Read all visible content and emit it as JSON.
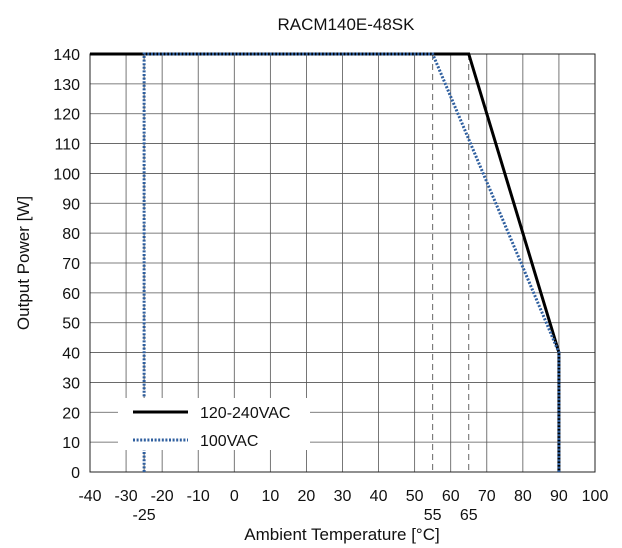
{
  "chart_data": {
    "type": "line",
    "title": "RACM140E-48SK",
    "xlabel": "Ambient Temperature [°C]",
    "ylabel": "Output Power [W]",
    "xlim": [
      -40,
      100
    ],
    "ylim": [
      0,
      140
    ],
    "x_ticks": [
      -40,
      -30,
      -20,
      -10,
      0,
      10,
      20,
      30,
      40,
      50,
      60,
      70,
      80,
      90,
      100
    ],
    "y_ticks": [
      0,
      10,
      20,
      30,
      40,
      50,
      60,
      70,
      80,
      90,
      100,
      110,
      120,
      130,
      140
    ],
    "extra_x_ticks": [
      -25,
      55,
      65
    ],
    "reference_lines_x": [
      -25,
      55,
      65
    ],
    "grid": true,
    "legend_position": "bottom-left",
    "series": [
      {
        "name": "120-240VAC",
        "style": "solid",
        "color": "#000000",
        "points": [
          [
            -40,
            140
          ],
          [
            65,
            140
          ],
          [
            90,
            40
          ],
          [
            90,
            0
          ]
        ]
      },
      {
        "name": "100VAC",
        "style": "dotted",
        "color": "#2f5f9f",
        "points": [
          [
            -25,
            0
          ],
          [
            -25,
            140
          ],
          [
            55,
            140
          ],
          [
            90,
            40
          ],
          [
            90,
            0
          ]
        ]
      }
    ]
  }
}
